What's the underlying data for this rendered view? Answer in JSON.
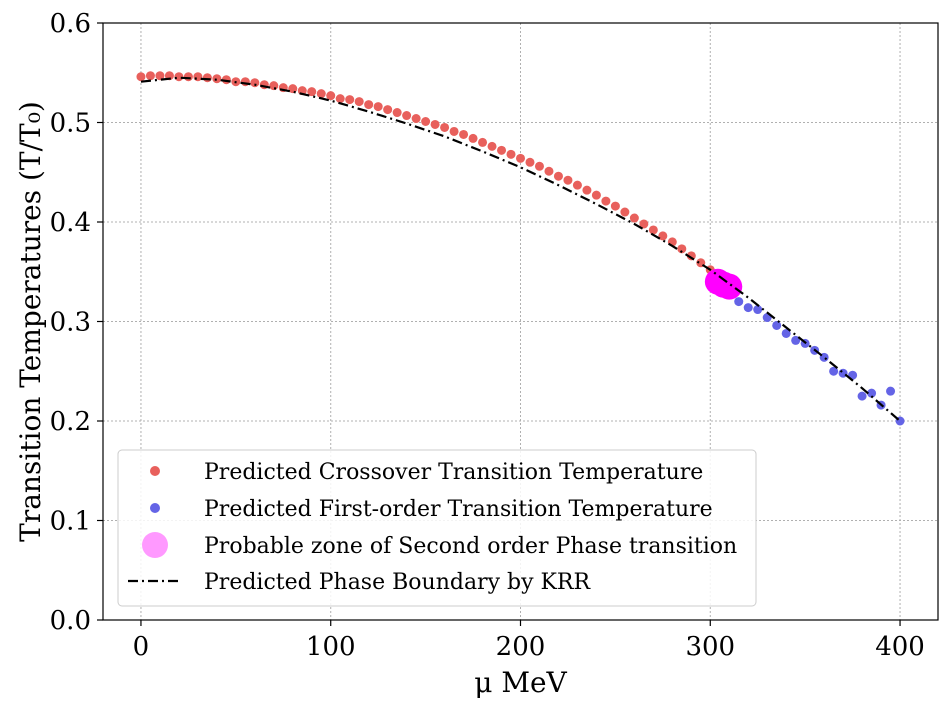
{
  "chart_data": {
    "type": "scatter",
    "xlabel": "μ MeV",
    "ylabel": "Transition Temperatures (T/T₀)",
    "xlim": [
      -20,
      420
    ],
    "ylim": [
      0.0,
      0.6
    ],
    "x_ticks": [
      "0",
      "100",
      "200",
      "300",
      "400"
    ],
    "y_ticks": [
      "0.0",
      "0.1",
      "0.2",
      "0.3",
      "0.4",
      "0.5",
      "0.6"
    ],
    "grid": true,
    "legend_position": "lower-left",
    "series": [
      {
        "name": "Predicted Crossover Transition Temperature",
        "kind": "scatter",
        "color": "#e8605c",
        "points": [
          [
            0,
            0.546
          ],
          [
            5,
            0.547
          ],
          [
            10,
            0.547
          ],
          [
            15,
            0.547
          ],
          [
            20,
            0.546
          ],
          [
            25,
            0.546
          ],
          [
            30,
            0.546
          ],
          [
            35,
            0.545
          ],
          [
            40,
            0.544
          ],
          [
            45,
            0.543
          ],
          [
            50,
            0.541
          ],
          [
            55,
            0.541
          ],
          [
            60,
            0.54
          ],
          [
            65,
            0.538
          ],
          [
            70,
            0.537
          ],
          [
            75,
            0.535
          ],
          [
            80,
            0.534
          ],
          [
            85,
            0.532
          ],
          [
            90,
            0.531
          ],
          [
            95,
            0.529
          ],
          [
            100,
            0.527
          ],
          [
            105,
            0.524
          ],
          [
            110,
            0.523
          ],
          [
            115,
            0.521
          ],
          [
            120,
            0.518
          ],
          [
            125,
            0.516
          ],
          [
            130,
            0.513
          ],
          [
            135,
            0.51
          ],
          [
            140,
            0.507
          ],
          [
            145,
            0.504
          ],
          [
            150,
            0.501
          ],
          [
            155,
            0.498
          ],
          [
            160,
            0.495
          ],
          [
            165,
            0.491
          ],
          [
            170,
            0.488
          ],
          [
            175,
            0.484
          ],
          [
            180,
            0.48
          ],
          [
            185,
            0.476
          ],
          [
            190,
            0.472
          ],
          [
            195,
            0.468
          ],
          [
            200,
            0.464
          ],
          [
            205,
            0.46
          ],
          [
            210,
            0.456
          ],
          [
            215,
            0.451
          ],
          [
            220,
            0.446
          ],
          [
            225,
            0.442
          ],
          [
            230,
            0.437
          ],
          [
            235,
            0.432
          ],
          [
            240,
            0.427
          ],
          [
            245,
            0.421
          ],
          [
            250,
            0.416
          ],
          [
            255,
            0.41
          ],
          [
            260,
            0.404
          ],
          [
            265,
            0.398
          ],
          [
            270,
            0.392
          ],
          [
            275,
            0.386
          ],
          [
            280,
            0.38
          ],
          [
            285,
            0.373
          ],
          [
            290,
            0.366
          ],
          [
            295,
            0.359
          ],
          [
            300,
            0.352
          ]
        ]
      },
      {
        "name": "Predicted First-order Transition Temperature",
        "kind": "scatter",
        "color": "#6464e6",
        "points": [
          [
            315,
            0.32
          ],
          [
            320,
            0.314
          ],
          [
            325,
            0.312
          ],
          [
            330,
            0.304
          ],
          [
            335,
            0.296
          ],
          [
            340,
            0.288
          ],
          [
            345,
            0.281
          ],
          [
            350,
            0.278
          ],
          [
            355,
            0.271
          ],
          [
            360,
            0.264
          ],
          [
            365,
            0.25
          ],
          [
            370,
            0.248
          ],
          [
            375,
            0.246
          ],
          [
            380,
            0.225
          ],
          [
            385,
            0.228
          ],
          [
            390,
            0.216
          ],
          [
            395,
            0.23
          ],
          [
            400,
            0.2
          ]
        ]
      },
      {
        "name": "Probable zone of Second order Phase transition",
        "kind": "zone",
        "color": "#ff00ff",
        "points": [
          [
            304,
            0.34
          ],
          [
            307,
            0.337
          ],
          [
            310,
            0.335
          ]
        ]
      },
      {
        "name": "Predicted Phase Boundary by KRR",
        "kind": "line",
        "color": "#000000",
        "points": [
          [
            0,
            0.541
          ],
          [
            20,
            0.545
          ],
          [
            40,
            0.543
          ],
          [
            60,
            0.538
          ],
          [
            80,
            0.531
          ],
          [
            100,
            0.522
          ],
          [
            120,
            0.511
          ],
          [
            140,
            0.499
          ],
          [
            160,
            0.486
          ],
          [
            180,
            0.471
          ],
          [
            200,
            0.455
          ],
          [
            220,
            0.437
          ],
          [
            240,
            0.418
          ],
          [
            260,
            0.398
          ],
          [
            280,
            0.376
          ],
          [
            300,
            0.352
          ],
          [
            320,
            0.324
          ],
          [
            340,
            0.294
          ],
          [
            360,
            0.264
          ],
          [
            380,
            0.233
          ],
          [
            400,
            0.2
          ]
        ]
      }
    ]
  }
}
